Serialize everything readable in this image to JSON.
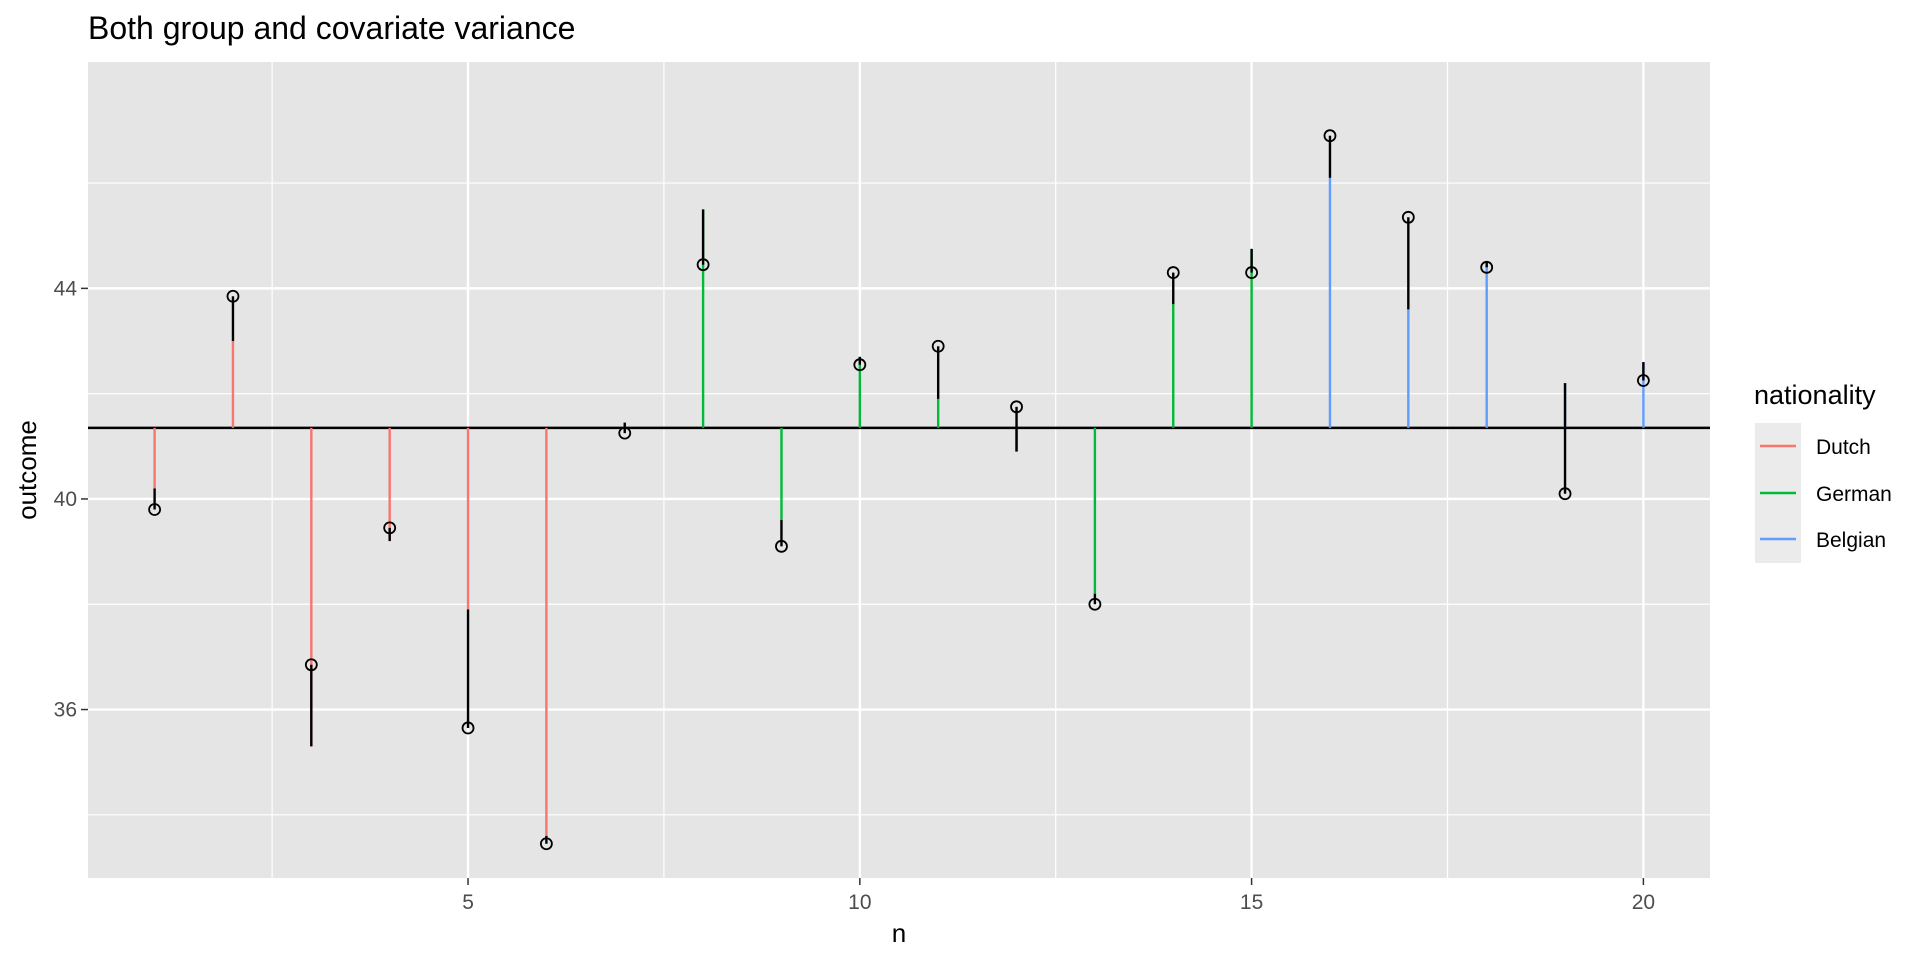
{
  "chart_data": {
    "type": "scatter",
    "title": "Both group and covariate variance",
    "xlabel": "n",
    "ylabel": "outcome",
    "xlim": [
      0.15,
      20.85
    ],
    "ylim": [
      32.8,
      48.3
    ],
    "x_ticks": [
      5,
      10,
      15,
      20
    ],
    "x_tick_labels": [
      "5",
      "10",
      "15",
      "20"
    ],
    "y_ticks": [
      36,
      40,
      44
    ],
    "y_tick_labels": [
      "36",
      "40",
      "44"
    ],
    "grid": true,
    "overall_mean": 41.35,
    "legend": {
      "title": "nationality",
      "position": "right",
      "entries": [
        {
          "label": "Dutch",
          "color": "#F8766D"
        },
        {
          "label": "German",
          "color": "#00BA38"
        },
        {
          "label": "Belgian",
          "color": "#619CFF"
        }
      ]
    },
    "points": [
      {
        "n": 1,
        "group": "Dutch",
        "fitted": 40.2,
        "outcome": 39.8
      },
      {
        "n": 2,
        "group": "Dutch",
        "fitted": 43.0,
        "outcome": 43.85
      },
      {
        "n": 3,
        "group": "Dutch",
        "fitted": 35.3,
        "outcome": 36.85
      },
      {
        "n": 4,
        "group": "Dutch",
        "fitted": 39.2,
        "outcome": 39.45
      },
      {
        "n": 5,
        "group": "Dutch",
        "fitted": 37.9,
        "outcome": 35.65
      },
      {
        "n": 6,
        "group": "Dutch",
        "fitted": 33.6,
        "outcome": 33.45
      },
      {
        "n": 7,
        "group": "Dutch",
        "fitted": 41.45,
        "outcome": 41.25
      },
      {
        "n": 8,
        "group": "German",
        "fitted": 45.5,
        "outcome": 44.45
      },
      {
        "n": 9,
        "group": "German",
        "fitted": 39.6,
        "outcome": 39.1
      },
      {
        "n": 10,
        "group": "German",
        "fitted": 42.7,
        "outcome": 42.55
      },
      {
        "n": 11,
        "group": "German",
        "fitted": 41.9,
        "outcome": 42.9
      },
      {
        "n": 12,
        "group": "German",
        "fitted": 40.9,
        "outcome": 41.75
      },
      {
        "n": 13,
        "group": "German",
        "fitted": 38.2,
        "outcome": 38.0
      },
      {
        "n": 14,
        "group": "German",
        "fitted": 43.7,
        "outcome": 44.3
      },
      {
        "n": 15,
        "group": "German",
        "fitted": 44.75,
        "outcome": 44.3
      },
      {
        "n": 16,
        "group": "Belgian",
        "fitted": 46.1,
        "outcome": 46.9
      },
      {
        "n": 17,
        "group": "Belgian",
        "fitted": 43.6,
        "outcome": 45.35
      },
      {
        "n": 18,
        "group": "Belgian",
        "fitted": 44.5,
        "outcome": 44.4
      },
      {
        "n": 19,
        "group": "Belgian",
        "fitted": 42.2,
        "outcome": 40.1
      },
      {
        "n": 20,
        "group": "Belgian",
        "fitted": 42.6,
        "outcome": 42.25
      }
    ]
  }
}
